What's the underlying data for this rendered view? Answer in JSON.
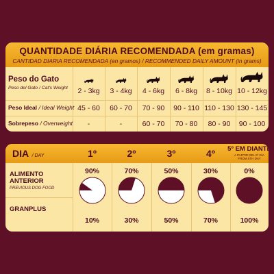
{
  "table1": {
    "title": "QUANTIDADE DIÁRIA RECOMENDADA (em gramas)",
    "subtitle": "CANTIDAD DIARIA RECOMENDADA (en gramos) / RECOMMENDED DAILY AMOUNT (in grams)",
    "weight_label": "Peso do Gato",
    "weight_sublabel": "Peso del Gato / Cat's Weight",
    "weights": [
      "2 - 3kg",
      "3 - 4kg",
      "4 - 6kg",
      "6 - 8kg",
      "8 - 10kg",
      "10 - 12kg"
    ],
    "ideal_label": "Peso Ideal",
    "ideal_sublabel": "/ Ideal Weight",
    "ideal": [
      "45 - 60",
      "60 - 70",
      "70 - 90",
      "90 - 110",
      "110 - 130",
      "130 - 145"
    ],
    "over_label": "Sobrepeso",
    "over_sublabel": "/ Overweight",
    "over": [
      "-",
      "-",
      "60 - 70",
      "70 - 80",
      "80 - 90",
      "90 - 100"
    ],
    "cat_icon": "cat-silhouette-icon"
  },
  "table2": {
    "dia_label": "DIA",
    "dia_sublabel": "/ DAY",
    "days": [
      "1º",
      "2º",
      "3º",
      "4º",
      "5º EM DIANTE"
    ],
    "day5_sub": "A PARTIR DEL 5º DÍA\nFROM 5TH DAY",
    "prev_label1": "ALIMENTO",
    "prev_label2": "ANTERIOR",
    "prev_sublabel": "PREVIOUS DOG FOOD",
    "prev_pct": [
      "90%",
      "70%",
      "50%",
      "30%",
      "0%"
    ],
    "granplus_label": "GRANPLUS",
    "granplus_pct": [
      "10%",
      "30%",
      "50%",
      "70%",
      "100%"
    ],
    "granplus_fraction": [
      0.1,
      0.3,
      0.5,
      0.7,
      1.0
    ]
  },
  "colors": {
    "background": "#5e1027",
    "panel": "#fbe6a6",
    "banner": "#f4ab24",
    "text": "#4d0c1e"
  }
}
